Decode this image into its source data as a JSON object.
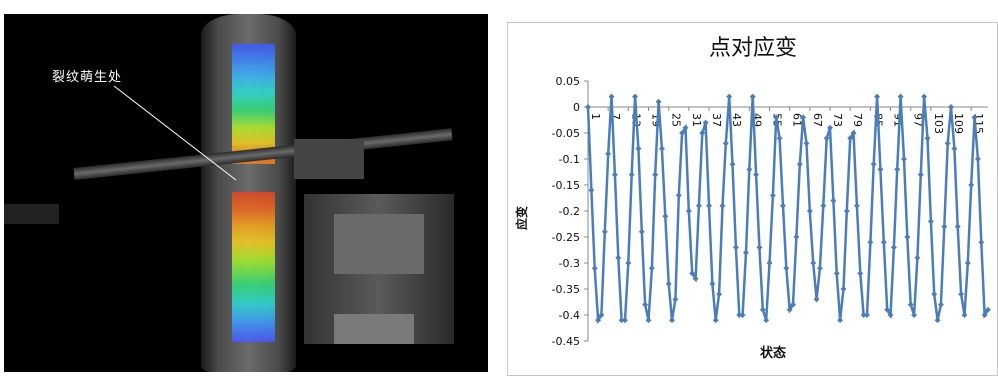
{
  "photo": {
    "annotation": "裂纹萌生处"
  },
  "chart_data": {
    "type": "line",
    "title": "点对应变",
    "xlabel": "状态",
    "ylabel": "应变",
    "ylim": [
      -0.45,
      0.05
    ],
    "yticks": [
      "0.05",
      "0",
      "-0.05",
      "-0.1",
      "-0.15",
      "-0.2",
      "-0.25",
      "-0.3",
      "-0.35",
      "-0.4",
      "-0.45"
    ],
    "xtick_labels": [
      "1",
      "7",
      "13",
      "19",
      "25",
      "31",
      "37",
      "43",
      "49",
      "55",
      "61",
      "67",
      "73",
      "79",
      "85",
      "91",
      "97",
      "103",
      "109",
      "115"
    ],
    "x": [
      1,
      2,
      3,
      4,
      5,
      6,
      7,
      8,
      9,
      10,
      11,
      12,
      13,
      14,
      15,
      16,
      17,
      18,
      19,
      20,
      21,
      22,
      23,
      24,
      25,
      26,
      27,
      28,
      29,
      30,
      31,
      32,
      33,
      34,
      35,
      36,
      37,
      38,
      39,
      40,
      41,
      42,
      43,
      44,
      45,
      46,
      47,
      48,
      49,
      50,
      51,
      52,
      53,
      54,
      55,
      56,
      57,
      58,
      59,
      60,
      61,
      62,
      63,
      64,
      65,
      66,
      67,
      68,
      69,
      70,
      71,
      72,
      73,
      74,
      75,
      76,
      77,
      78,
      79,
      80,
      81,
      82,
      83,
      84,
      85,
      86,
      87,
      88,
      89,
      90,
      91,
      92,
      93,
      94,
      95,
      96,
      97,
      98,
      99,
      100,
      101,
      102,
      103,
      104,
      105,
      106,
      107,
      108,
      109,
      110,
      111,
      112,
      113,
      114,
      115,
      116,
      117,
      118,
      119,
      120
    ],
    "series": [
      {
        "values": [
          0.0,
          -0.16,
          -0.31,
          -0.41,
          -0.4,
          -0.24,
          -0.09,
          0.02,
          -0.13,
          -0.29,
          -0.41,
          -0.41,
          -0.3,
          -0.13,
          0.02,
          -0.08,
          -0.24,
          -0.38,
          -0.41,
          -0.31,
          -0.13,
          0.01,
          -0.08,
          -0.21,
          -0.34,
          -0.41,
          -0.37,
          -0.17,
          -0.05,
          -0.04,
          -0.2,
          -0.32,
          -0.33,
          -0.19,
          -0.05,
          -0.03,
          -0.19,
          -0.34,
          -0.41,
          -0.36,
          -0.19,
          -0.07,
          0.02,
          -0.11,
          -0.27,
          -0.4,
          -0.4,
          -0.28,
          -0.12,
          0.02,
          -0.13,
          -0.27,
          -0.39,
          -0.41,
          -0.3,
          -0.17,
          -0.02,
          -0.06,
          -0.19,
          -0.31,
          -0.39,
          -0.38,
          -0.25,
          -0.11,
          -0.02,
          -0.07,
          -0.2,
          -0.3,
          -0.37,
          -0.31,
          -0.19,
          -0.06,
          -0.04,
          -0.18,
          -0.32,
          -0.41,
          -0.35,
          -0.2,
          -0.06,
          -0.05,
          -0.19,
          -0.32,
          -0.4,
          -0.4,
          -0.26,
          -0.11,
          0.02,
          -0.12,
          -0.26,
          -0.39,
          -0.4,
          -0.27,
          -0.12,
          0.02,
          -0.1,
          -0.25,
          -0.38,
          -0.4,
          -0.29,
          -0.13,
          0.02,
          -0.06,
          -0.22,
          -0.36,
          -0.41,
          -0.38,
          -0.23,
          -0.07,
          0.0,
          -0.08,
          -0.23,
          -0.36,
          -0.4,
          -0.3,
          -0.15,
          -0.02,
          -0.1,
          -0.26,
          -0.4,
          -0.39
        ]
      }
    ],
    "line_color": "#4a7ebb",
    "grid": false,
    "legend": "none"
  }
}
